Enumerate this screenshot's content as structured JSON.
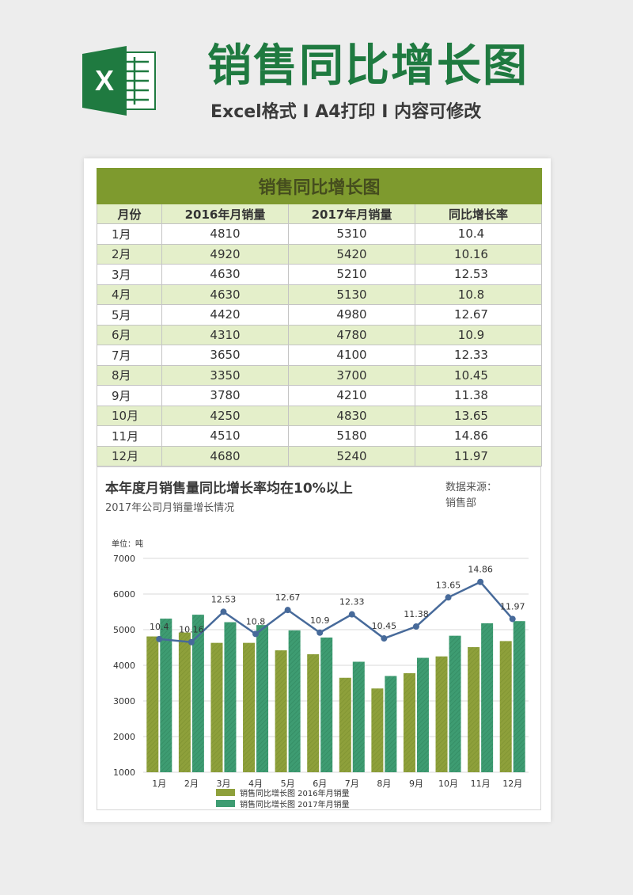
{
  "header": {
    "title": "销售同比增长图",
    "subtitle": "Excel格式 I A4打印 I 内容可修改",
    "logo_letter": "X"
  },
  "colors": {
    "brand_green": "#1f7a40",
    "table_title_bg": "#7e9a2e",
    "row_alt_bg": "#e4efca",
    "bar_2016": "#8ea03b",
    "bar_2017": "#3e9c72",
    "line": "#476a9a"
  },
  "table": {
    "title": "销售同比增长图",
    "headers": [
      "月份",
      "2016年月销量",
      "2017年月销量",
      "同比增长率"
    ],
    "rows": [
      [
        "1月",
        "4810",
        "5310",
        "10.4"
      ],
      [
        "2月",
        "4920",
        "5420",
        "10.16"
      ],
      [
        "3月",
        "4630",
        "5210",
        "12.53"
      ],
      [
        "4月",
        "4630",
        "5130",
        "10.8"
      ],
      [
        "5月",
        "4420",
        "4980",
        "12.67"
      ],
      [
        "6月",
        "4310",
        "4780",
        "10.9"
      ],
      [
        "7月",
        "3650",
        "4100",
        "12.33"
      ],
      [
        "8月",
        "3350",
        "3700",
        "10.45"
      ],
      [
        "9月",
        "3780",
        "4210",
        "11.38"
      ],
      [
        "10月",
        "4250",
        "4830",
        "13.65"
      ],
      [
        "11月",
        "4510",
        "5180",
        "14.86"
      ],
      [
        "12月",
        "4680",
        "5240",
        "11.97"
      ]
    ]
  },
  "chart": {
    "title": "本年度月销售量同比增长率均在10%以上",
    "subtitle": "2017年公司月销量增长情况",
    "source_label": "数据来源：",
    "source_value": "销售部"
  },
  "chart_data": {
    "type": "bar",
    "unit_label": "单位：吨",
    "categories": [
      "1月",
      "2月",
      "3月",
      "4月",
      "5月",
      "6月",
      "7月",
      "8月",
      "9月",
      "10月",
      "11月",
      "12月"
    ],
    "series": [
      {
        "name": "销售同比增长图 2016年月销量",
        "type": "bar",
        "values": [
          4810,
          4920,
          4630,
          4630,
          4420,
          4310,
          3650,
          3350,
          3780,
          4250,
          4510,
          4680
        ]
      },
      {
        "name": "销售同比增长图 2017年月销量",
        "type": "bar",
        "values": [
          5310,
          5420,
          5210,
          5130,
          4980,
          4780,
          4100,
          3700,
          4210,
          4830,
          5180,
          5240
        ]
      },
      {
        "type": "line",
        "secondary_axis": true,
        "values": [
          10.4,
          10.16,
          12.53,
          10.8,
          12.67,
          10.9,
          12.33,
          10.45,
          11.38,
          13.65,
          14.86,
          11.97
        ]
      }
    ],
    "ylim": [
      1000,
      7000
    ],
    "yticks": [
      "1000",
      "2000",
      "3000",
      "4000",
      "5000",
      "6000",
      "7000"
    ],
    "secondary_ylim": [
      0,
      16.7
    ],
    "grid": true,
    "legend_position": "bottom"
  }
}
